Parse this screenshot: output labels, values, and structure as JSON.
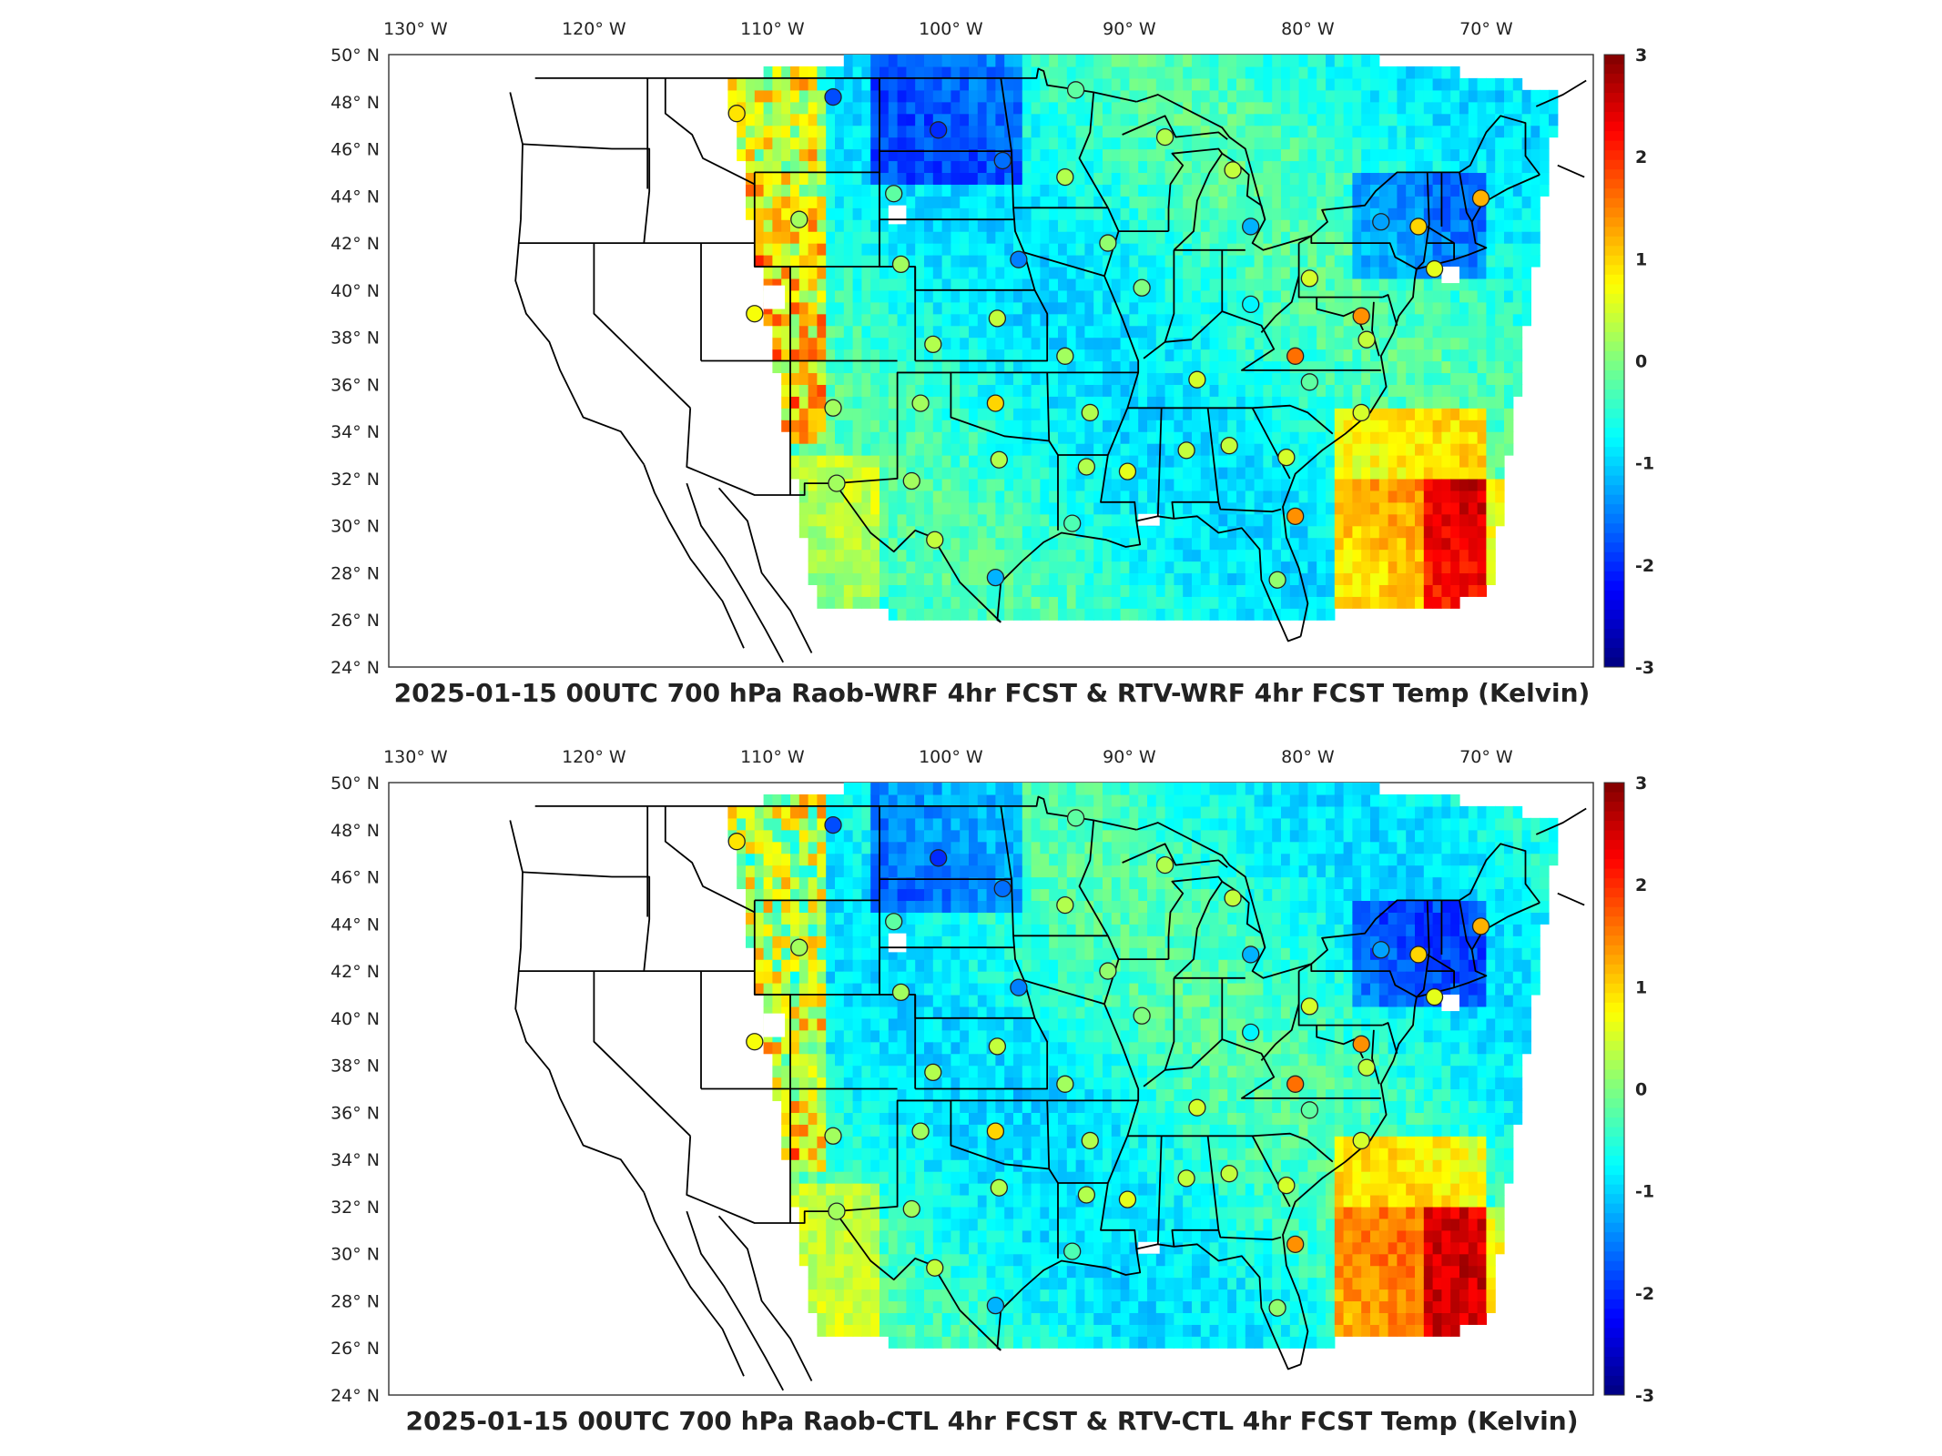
{
  "panels": [
    {
      "title": "2025-01-15 00UTC 700 hPa Raob-WRF 4hr FCST & RTV-WRF 4hr FCST Temp (Kelvin)",
      "stations": [
        {
          "lon": -112.0,
          "lat": 47.5,
          "v": 0.9
        },
        {
          "lon": -106.6,
          "lat": 48.2,
          "v": -1.8
        },
        {
          "lon": -100.7,
          "lat": 46.8,
          "v": -2.0
        },
        {
          "lon": -97.1,
          "lat": 45.5,
          "v": -1.6
        },
        {
          "lon": -93.6,
          "lat": 44.8,
          "v": 0.3
        },
        {
          "lon": -108.5,
          "lat": 43.0,
          "v": 0.2
        },
        {
          "lon": -103.2,
          "lat": 44.1,
          "v": -0.2
        },
        {
          "lon": -111.0,
          "lat": 39.0,
          "v": 0.7
        },
        {
          "lon": -102.8,
          "lat": 41.1,
          "v": 0.2
        },
        {
          "lon": -96.2,
          "lat": 41.3,
          "v": -1.5
        },
        {
          "lon": -91.2,
          "lat": 42.0,
          "v": 0.1
        },
        {
          "lon": -89.3,
          "lat": 40.1,
          "v": 0.0
        },
        {
          "lon": -88.0,
          "lat": 46.5,
          "v": 0.3
        },
        {
          "lon": -84.2,
          "lat": 45.1,
          "v": 0.4
        },
        {
          "lon": -83.2,
          "lat": 42.7,
          "v": -1.2
        },
        {
          "lon": -75.9,
          "lat": 42.9,
          "v": -1.3
        },
        {
          "lon": -73.8,
          "lat": 42.7,
          "v": 1.0
        },
        {
          "lon": -70.3,
          "lat": 43.9,
          "v": 1.2
        },
        {
          "lon": -72.9,
          "lat": 40.9,
          "v": 0.6
        },
        {
          "lon": -79.9,
          "lat": 40.5,
          "v": 0.5
        },
        {
          "lon": -77.0,
          "lat": 38.9,
          "v": 1.4
        },
        {
          "lon": -80.7,
          "lat": 37.2,
          "v": 1.6
        },
        {
          "lon": -79.9,
          "lat": 36.1,
          "v": -0.2
        },
        {
          "lon": -77.0,
          "lat": 34.8,
          "v": 0.5
        },
        {
          "lon": -81.2,
          "lat": 32.9,
          "v": 0.5
        },
        {
          "lon": -84.4,
          "lat": 33.4,
          "v": 0.4
        },
        {
          "lon": -86.8,
          "lat": 33.2,
          "v": 0.4
        },
        {
          "lon": -86.2,
          "lat": 36.2,
          "v": 0.5
        },
        {
          "lon": -83.2,
          "lat": 39.4,
          "v": -0.8
        },
        {
          "lon": -97.5,
          "lat": 35.2,
          "v": 1.0
        },
        {
          "lon": -101.7,
          "lat": 35.2,
          "v": 0.2
        },
        {
          "lon": -106.6,
          "lat": 35.0,
          "v": 0.2
        },
        {
          "lon": -101.0,
          "lat": 37.7,
          "v": 0.3
        },
        {
          "lon": -97.4,
          "lat": 38.8,
          "v": 0.4
        },
        {
          "lon": -92.2,
          "lat": 34.8,
          "v": 0.3
        },
        {
          "lon": -93.6,
          "lat": 37.2,
          "v": 0.2
        },
        {
          "lon": -90.1,
          "lat": 32.3,
          "v": 0.6
        },
        {
          "lon": -92.4,
          "lat": 32.5,
          "v": 0.3
        },
        {
          "lon": -97.3,
          "lat": 32.8,
          "v": 0.3
        },
        {
          "lon": -102.2,
          "lat": 31.9,
          "v": 0.2
        },
        {
          "lon": -106.4,
          "lat": 31.8,
          "v": 0.2
        },
        {
          "lon": -100.9,
          "lat": 29.4,
          "v": 0.4
        },
        {
          "lon": -97.5,
          "lat": 27.8,
          "v": -1.2
        },
        {
          "lon": -93.2,
          "lat": 30.1,
          "v": -0.3
        },
        {
          "lon": -80.7,
          "lat": 30.4,
          "v": 1.4
        },
        {
          "lon": -81.7,
          "lat": 27.7,
          "v": 0.1
        },
        {
          "lon": -93.0,
          "lat": 48.5,
          "v": -0.2
        },
        {
          "lon": -76.7,
          "lat": 37.9,
          "v": 0.4
        }
      ]
    },
    {
      "title": "2025-01-15 00UTC 700 hPa Raob-CTL 4hr FCST & RTV-CTL 4hr FCST Temp (Kelvin)",
      "stations": [
        {
          "lon": -112.0,
          "lat": 47.5,
          "v": 0.9
        },
        {
          "lon": -106.6,
          "lat": 48.2,
          "v": -1.8
        },
        {
          "lon": -100.7,
          "lat": 46.8,
          "v": -2.0
        },
        {
          "lon": -97.1,
          "lat": 45.5,
          "v": -1.6
        },
        {
          "lon": -93.6,
          "lat": 44.8,
          "v": 0.3
        },
        {
          "lon": -108.5,
          "lat": 43.0,
          "v": 0.2
        },
        {
          "lon": -103.2,
          "lat": 44.1,
          "v": -0.2
        },
        {
          "lon": -111.0,
          "lat": 39.0,
          "v": 0.7
        },
        {
          "lon": -102.8,
          "lat": 41.1,
          "v": 0.2
        },
        {
          "lon": -96.2,
          "lat": 41.3,
          "v": -1.5
        },
        {
          "lon": -91.2,
          "lat": 42.0,
          "v": 0.1
        },
        {
          "lon": -89.3,
          "lat": 40.1,
          "v": 0.0
        },
        {
          "lon": -88.0,
          "lat": 46.5,
          "v": 0.3
        },
        {
          "lon": -84.2,
          "lat": 45.1,
          "v": 0.4
        },
        {
          "lon": -83.2,
          "lat": 42.7,
          "v": -1.2
        },
        {
          "lon": -75.9,
          "lat": 42.9,
          "v": -1.3
        },
        {
          "lon": -73.8,
          "lat": 42.7,
          "v": 1.0
        },
        {
          "lon": -70.3,
          "lat": 43.9,
          "v": 1.2
        },
        {
          "lon": -72.9,
          "lat": 40.9,
          "v": 0.6
        },
        {
          "lon": -79.9,
          "lat": 40.5,
          "v": 0.5
        },
        {
          "lon": -77.0,
          "lat": 38.9,
          "v": 1.4
        },
        {
          "lon": -80.7,
          "lat": 37.2,
          "v": 1.6
        },
        {
          "lon": -79.9,
          "lat": 36.1,
          "v": -0.2
        },
        {
          "lon": -77.0,
          "lat": 34.8,
          "v": 0.5
        },
        {
          "lon": -81.2,
          "lat": 32.9,
          "v": 0.5
        },
        {
          "lon": -84.4,
          "lat": 33.4,
          "v": 0.4
        },
        {
          "lon": -86.8,
          "lat": 33.2,
          "v": 0.4
        },
        {
          "lon": -86.2,
          "lat": 36.2,
          "v": 0.5
        },
        {
          "lon": -83.2,
          "lat": 39.4,
          "v": -0.8
        },
        {
          "lon": -97.5,
          "lat": 35.2,
          "v": 1.0
        },
        {
          "lon": -101.7,
          "lat": 35.2,
          "v": 0.2
        },
        {
          "lon": -106.6,
          "lat": 35.0,
          "v": 0.2
        },
        {
          "lon": -101.0,
          "lat": 37.7,
          "v": 0.3
        },
        {
          "lon": -97.4,
          "lat": 38.8,
          "v": 0.4
        },
        {
          "lon": -92.2,
          "lat": 34.8,
          "v": 0.3
        },
        {
          "lon": -93.6,
          "lat": 37.2,
          "v": 0.2
        },
        {
          "lon": -90.1,
          "lat": 32.3,
          "v": 0.6
        },
        {
          "lon": -92.4,
          "lat": 32.5,
          "v": 0.3
        },
        {
          "lon": -97.3,
          "lat": 32.8,
          "v": 0.3
        },
        {
          "lon": -102.2,
          "lat": 31.9,
          "v": 0.2
        },
        {
          "lon": -106.4,
          "lat": 31.8,
          "v": 0.2
        },
        {
          "lon": -100.9,
          "lat": 29.4,
          "v": 0.4
        },
        {
          "lon": -97.5,
          "lat": 27.8,
          "v": -1.2
        },
        {
          "lon": -93.2,
          "lat": 30.1,
          "v": -0.3
        },
        {
          "lon": -80.7,
          "lat": 30.4,
          "v": 1.4
        },
        {
          "lon": -81.7,
          "lat": 27.7,
          "v": 0.1
        },
        {
          "lon": -93.0,
          "lat": 48.5,
          "v": -0.2
        },
        {
          "lon": -76.7,
          "lat": 37.9,
          "v": 0.4
        }
      ]
    }
  ],
  "lon_ticks": [
    "130° W",
    "120° W",
    "110° W",
    "100° W",
    "90° W",
    "80° W",
    "70° W"
  ],
  "lat_ticks": [
    "24° N",
    "26° N",
    "28° N",
    "30° N",
    "32° N",
    "34° N",
    "36° N",
    "38° N",
    "40° N",
    "42° N",
    "44° N",
    "46° N",
    "48° N",
    "50° N"
  ],
  "map": {
    "lon_min": -131.5,
    "lon_max": -64,
    "lat_min": 24,
    "lat_max": 50
  },
  "colorbar": {
    "min": -3,
    "max": 3,
    "ticks": [
      "3",
      "2",
      "1",
      "0",
      "-1",
      "-2",
      "-3"
    ],
    "colormap": "jet"
  }
}
